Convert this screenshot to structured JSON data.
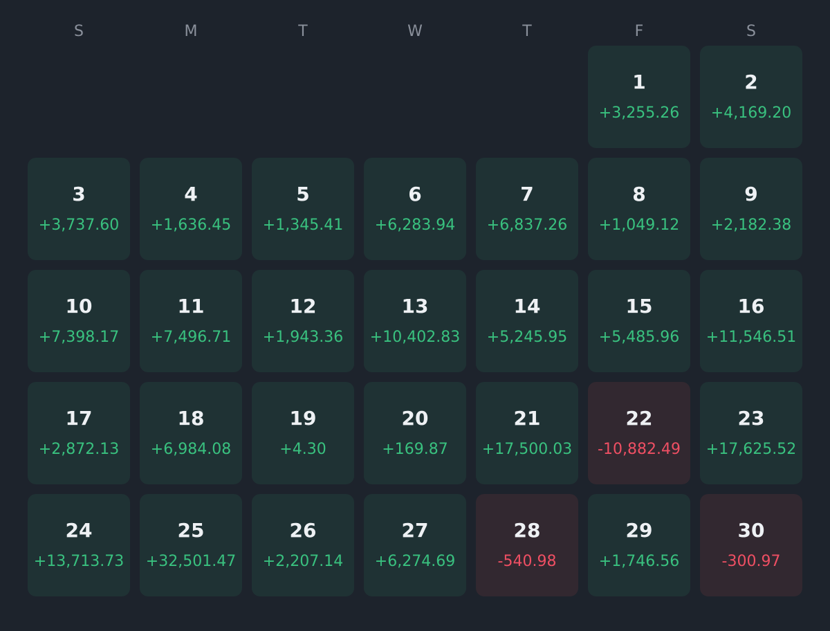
{
  "weekdays": [
    "S",
    "M",
    "T",
    "W",
    "T",
    "F",
    "S"
  ],
  "colors": {
    "background": "#1d232c",
    "positive_text": "#39c17f",
    "negative_text": "#ef4f63",
    "positive_cell": "#1f3234",
    "negative_cell": "#322830"
  },
  "days": [
    {
      "day": "1",
      "pnl": "+3,255.26",
      "status": "gain"
    },
    {
      "day": "2",
      "pnl": "+4,169.20",
      "status": "gain"
    },
    {
      "day": "3",
      "pnl": "+3,737.60",
      "status": "gain"
    },
    {
      "day": "4",
      "pnl": "+1,636.45",
      "status": "gain"
    },
    {
      "day": "5",
      "pnl": "+1,345.41",
      "status": "gain"
    },
    {
      "day": "6",
      "pnl": "+6,283.94",
      "status": "gain"
    },
    {
      "day": "7",
      "pnl": "+6,837.26",
      "status": "gain"
    },
    {
      "day": "8",
      "pnl": "+1,049.12",
      "status": "gain"
    },
    {
      "day": "9",
      "pnl": "+2,182.38",
      "status": "gain"
    },
    {
      "day": "10",
      "pnl": "+7,398.17",
      "status": "gain"
    },
    {
      "day": "11",
      "pnl": "+7,496.71",
      "status": "gain"
    },
    {
      "day": "12",
      "pnl": "+1,943.36",
      "status": "gain"
    },
    {
      "day": "13",
      "pnl": "+10,402.83",
      "status": "gain"
    },
    {
      "day": "14",
      "pnl": "+5,245.95",
      "status": "gain"
    },
    {
      "day": "15",
      "pnl": "+5,485.96",
      "status": "gain"
    },
    {
      "day": "16",
      "pnl": "+11,546.51",
      "status": "gain"
    },
    {
      "day": "17",
      "pnl": "+2,872.13",
      "status": "gain"
    },
    {
      "day": "18",
      "pnl": "+6,984.08",
      "status": "gain"
    },
    {
      "day": "19",
      "pnl": "+4.30",
      "status": "gain"
    },
    {
      "day": "20",
      "pnl": "+169.87",
      "status": "gain"
    },
    {
      "day": "21",
      "pnl": "+17,500.03",
      "status": "gain"
    },
    {
      "day": "22",
      "pnl": "-10,882.49",
      "status": "loss"
    },
    {
      "day": "23",
      "pnl": "+17,625.52",
      "status": "gain"
    },
    {
      "day": "24",
      "pnl": "+13,713.73",
      "status": "gain"
    },
    {
      "day": "25",
      "pnl": "+32,501.47",
      "status": "gain"
    },
    {
      "day": "26",
      "pnl": "+2,207.14",
      "status": "gain"
    },
    {
      "day": "27",
      "pnl": "+6,274.69",
      "status": "gain"
    },
    {
      "day": "28",
      "pnl": "-540.98",
      "status": "loss"
    },
    {
      "day": "29",
      "pnl": "+1,746.56",
      "status": "gain"
    },
    {
      "day": "30",
      "pnl": "-300.97",
      "status": "loss"
    }
  ]
}
